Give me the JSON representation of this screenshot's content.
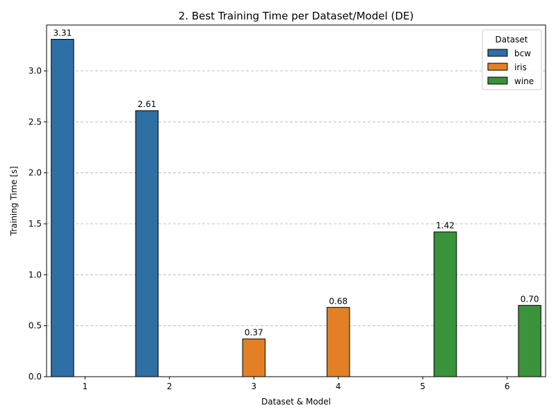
{
  "chart_data": {
    "type": "bar",
    "title": "2. Best Training Time per Dataset/Model (DE)",
    "xlabel": "Dataset & Model",
    "ylabel": "Training Time [s]",
    "categories": [
      "1",
      "2",
      "3",
      "4",
      "5",
      "6"
    ],
    "ylim": [
      0,
      3.45
    ],
    "yticks": [
      "0.0",
      "0.5",
      "1.0",
      "1.5",
      "2.0",
      "2.5",
      "3.0"
    ],
    "grid": "y-dashed",
    "legend": {
      "title": "Dataset",
      "placement": "top-right"
    },
    "series": [
      {
        "name": "bcw",
        "color": "#2e6fa5",
        "values": [
          3.31,
          2.61,
          null,
          null,
          null,
          null
        ],
        "labels": [
          "3.31",
          "2.61",
          "",
          "",
          "",
          ""
        ]
      },
      {
        "name": "iris",
        "color": "#e38026",
        "values": [
          null,
          null,
          0.37,
          0.68,
          null,
          null
        ],
        "labels": [
          "",
          "",
          "0.37",
          "0.68",
          "",
          ""
        ]
      },
      {
        "name": "wine",
        "color": "#3a923a",
        "values": [
          null,
          null,
          null,
          null,
          1.42,
          0.7
        ],
        "labels": [
          "",
          "",
          "",
          "",
          "1.42",
          "0.70"
        ]
      }
    ]
  }
}
